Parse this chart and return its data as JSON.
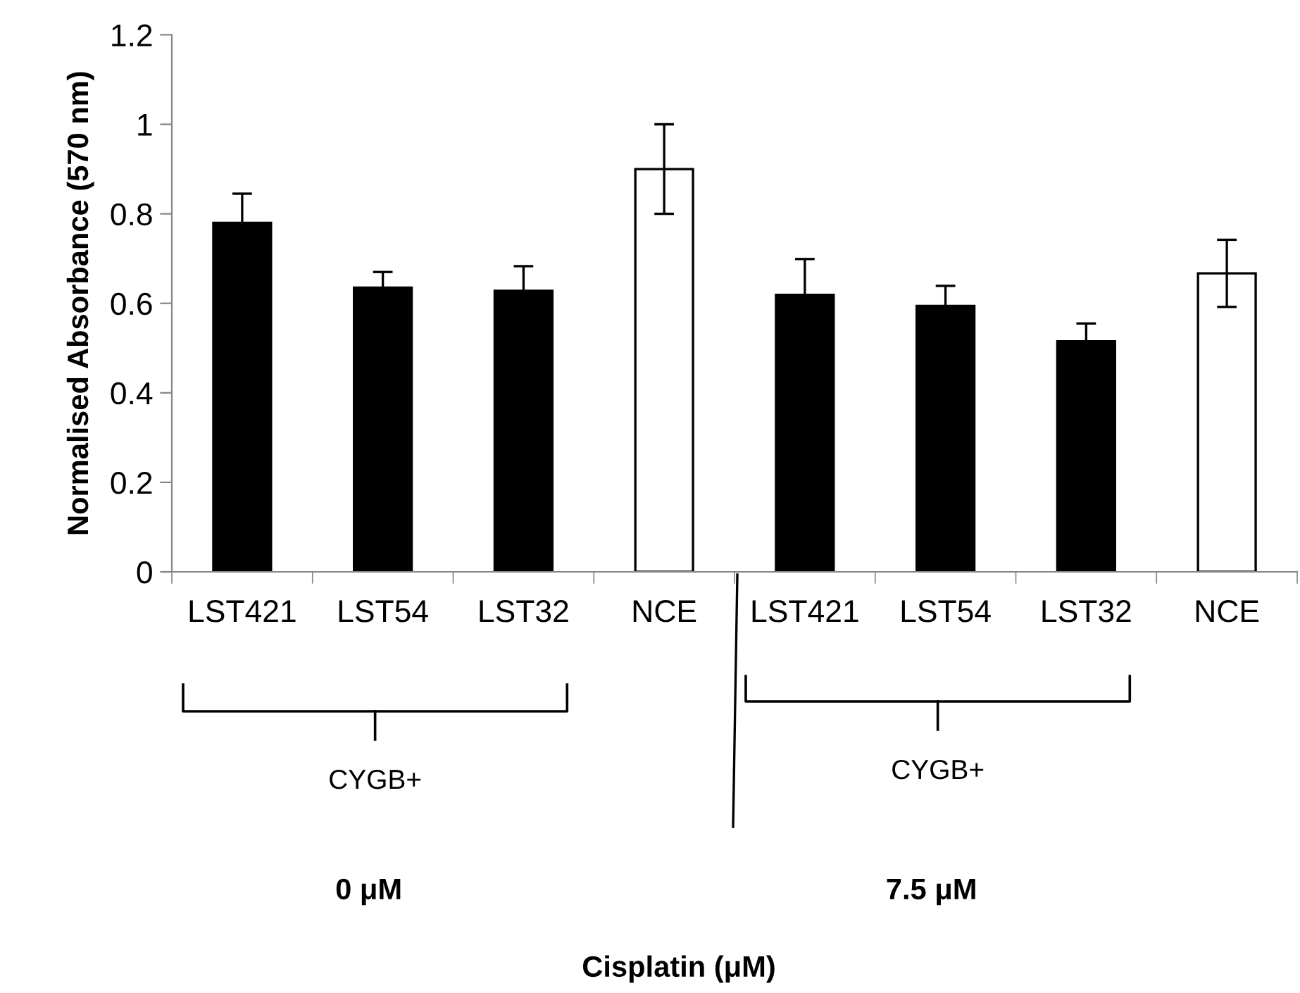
{
  "chart_data": {
    "type": "bar",
    "ylabel": "Normalised Absorbance (570 nm)",
    "categories": [
      "LST421",
      "LST54",
      "LST32",
      "NCE",
      "LST421",
      "LST54",
      "LST32",
      "NCE"
    ],
    "values": [
      0.78,
      0.635,
      0.628,
      0.9,
      0.619,
      0.594,
      0.515,
      0.667
    ],
    "errors": [
      0.065,
      0.035,
      0.055,
      0.1,
      0.08,
      0.045,
      0.04,
      0.075
    ],
    "colors": [
      "#000000",
      "#000000",
      "#000000",
      "#ffffff",
      "#000000",
      "#000000",
      "#000000",
      "#ffffff"
    ],
    "ylim": [
      0,
      1.2
    ],
    "yticks": [
      0,
      0.2,
      0.4,
      0.6,
      0.8,
      1,
      1.2
    ],
    "grid": false,
    "legend": false,
    "annotations": [
      "CYGB+",
      "CYGB+",
      "0 μM",
      "7.5 μM",
      "Cisplatin (μM)"
    ]
  }
}
